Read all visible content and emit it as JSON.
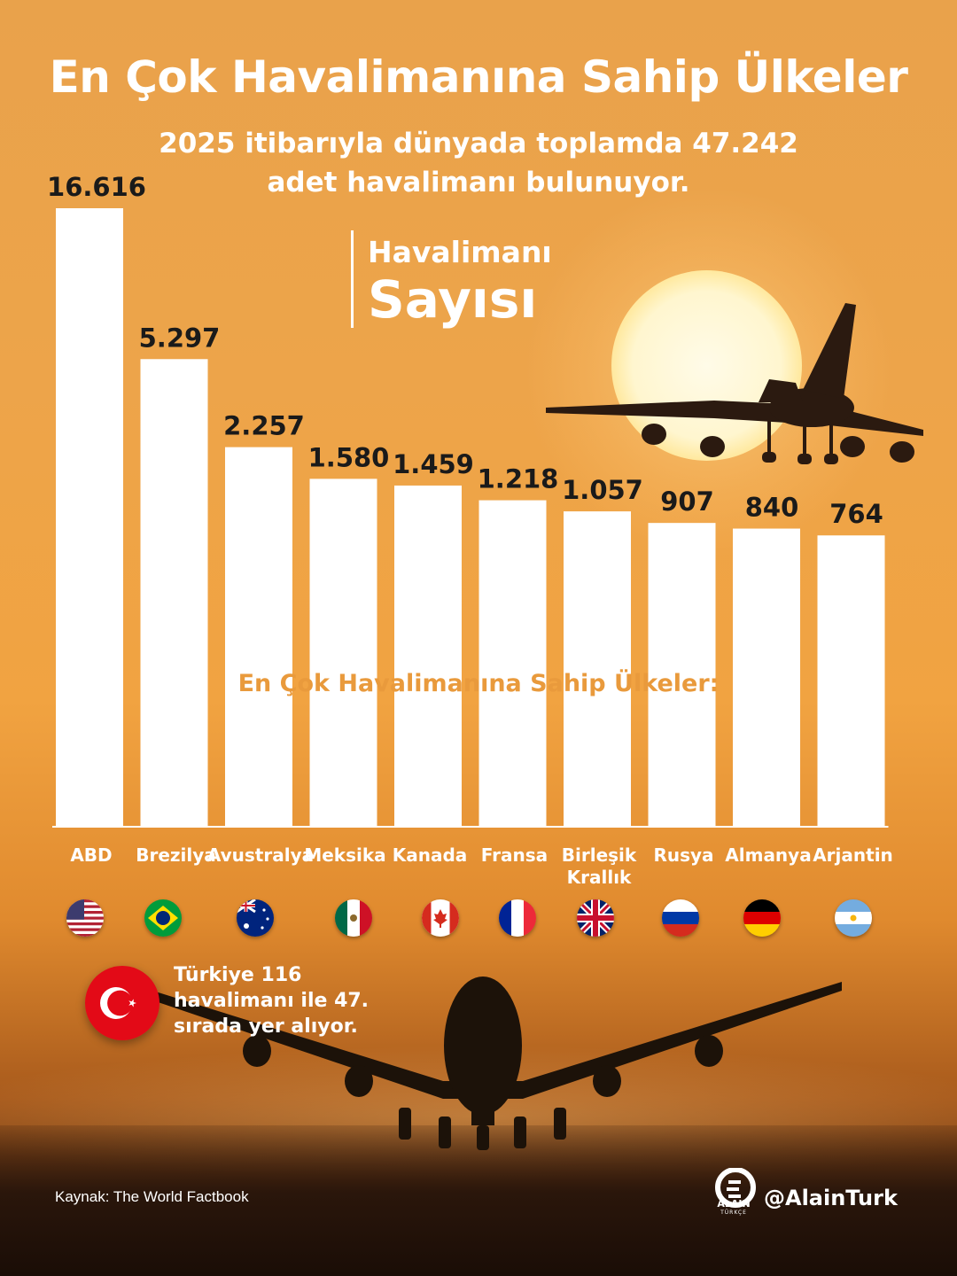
{
  "header": {
    "title": "En Çok Havalimanına Sahip Ülkeler",
    "subtitle": "2025 itibarıyla dünyada toplamda 47.242 adet havalimanı bulunuyor."
  },
  "legend": {
    "line1": "Havalimanı",
    "line2": "Sayısı"
  },
  "overlay_heading": "En Çok Havalimanına Sahip Ülkeler:",
  "turkey_note": {
    "text": "Türkiye 116 havalimanı ile 47. sırada yer alıyor.",
    "flag_icon": "turkey-flag-icon"
  },
  "footer": {
    "source": "Kaynak: The World Factbook",
    "brand_name": "ALAIN",
    "brand_sub": "TÜRKÇE",
    "handle": "@AlainTurk"
  },
  "colors": {
    "bar": "#ffffff",
    "value_label": "#1a1a1a",
    "accent_text": "#e99a3c"
  },
  "chart_data": {
    "type": "bar",
    "categories": [
      "ABD",
      "Brezilya",
      "Avustralya",
      "Meksika",
      "Kanada",
      "Fransa",
      "Birleşik Krallık",
      "Rusya",
      "Almanya",
      "Arjantin"
    ],
    "values": [
      16616,
      5297,
      2257,
      1580,
      1459,
      1218,
      1057,
      907,
      840,
      764
    ],
    "value_labels": [
      "16.616",
      "5.297",
      "2.257",
      "1.580",
      "1.459",
      "1.218",
      "1.057",
      "907",
      "840",
      "764"
    ],
    "flags": [
      "usa-flag-icon",
      "brazil-flag-icon",
      "australia-flag-icon",
      "mexico-flag-icon",
      "canada-flag-icon",
      "france-flag-icon",
      "uk-flag-icon",
      "russia-flag-icon",
      "germany-flag-icon",
      "argentina-flag-icon"
    ],
    "xlabel": "",
    "ylabel": "",
    "grid": false,
    "legend_position": "top-center"
  }
}
